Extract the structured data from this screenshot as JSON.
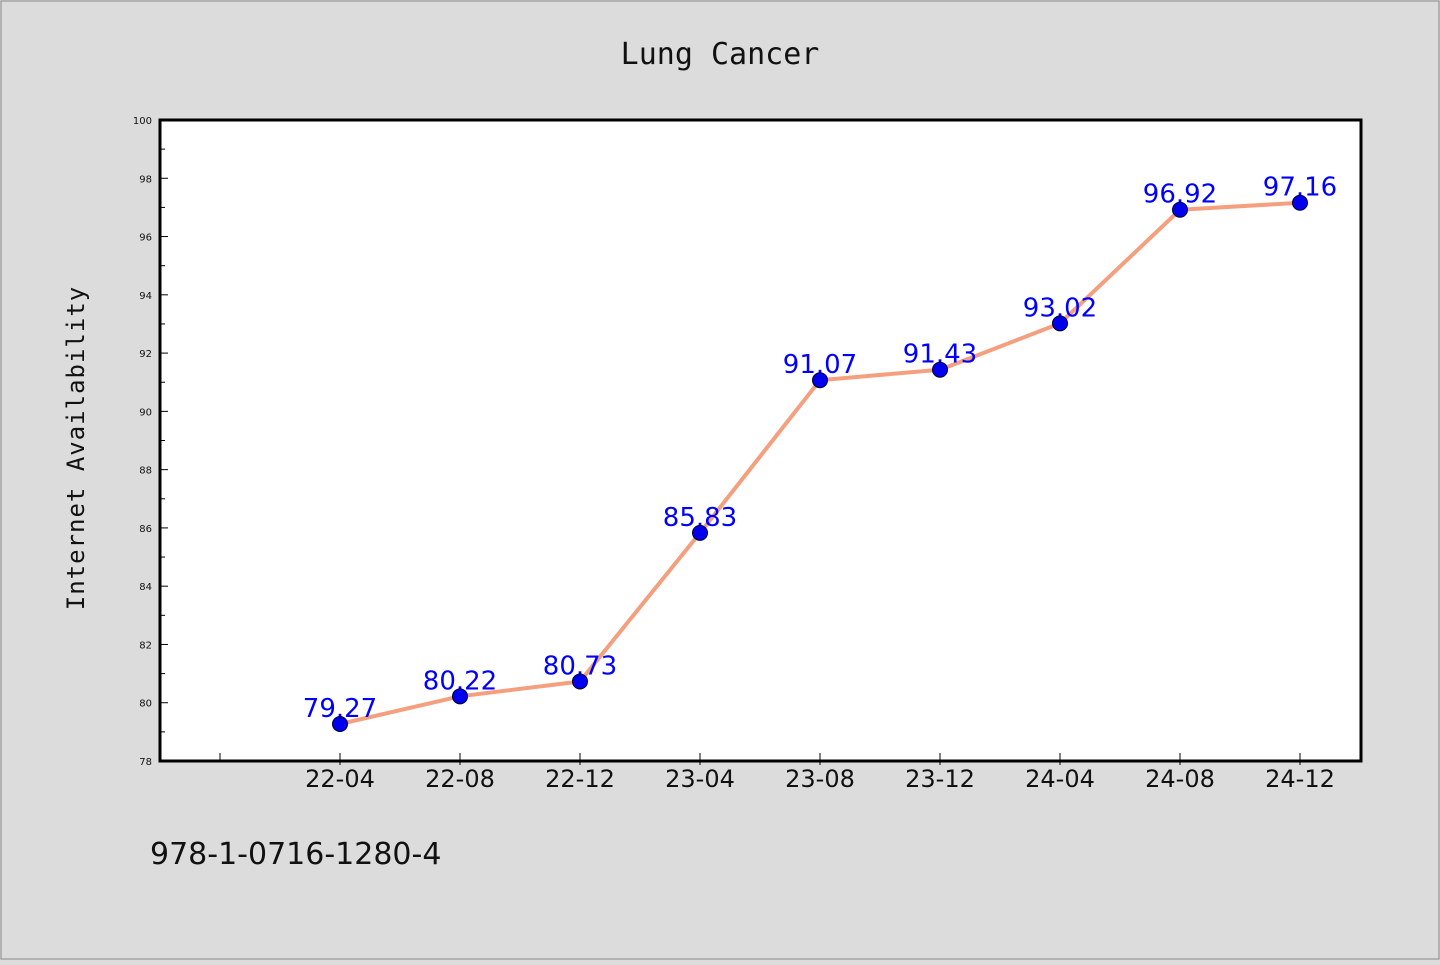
{
  "chart_data": {
    "type": "line",
    "title": "Lung Cancer",
    "xlabel": "",
    "ylabel": "Internet Availability",
    "categories": [
      "22-04",
      "22-08",
      "22-12",
      "23-04",
      "23-08",
      "23-12",
      "24-04",
      "24-08",
      "24-12"
    ],
    "series": [
      {
        "values": [
          79.27,
          80.22,
          80.73,
          85.83,
          91.07,
          91.43,
          93.02,
          96.92,
          97.16
        ],
        "data_labels": [
          "79.27",
          "80.22",
          "80.73",
          "85.83",
          "91.07",
          "91.43",
          "93.02",
          "96.92",
          "97.16"
        ]
      }
    ],
    "ylim": [
      78,
      100
    ],
    "yticks": [
      "78",
      "80",
      "82",
      "84",
      "86",
      "88",
      "90",
      "92",
      "94",
      "96",
      "98",
      "100"
    ],
    "grid": false,
    "legend": "none"
  },
  "footer_text": "978-1-0716-1280-4",
  "colors": {
    "background": "#dcdcdc",
    "plot_background": "#ffffff",
    "line": "#f4a07f",
    "marker": "#0000ee",
    "data_label": "#0000ff"
  }
}
